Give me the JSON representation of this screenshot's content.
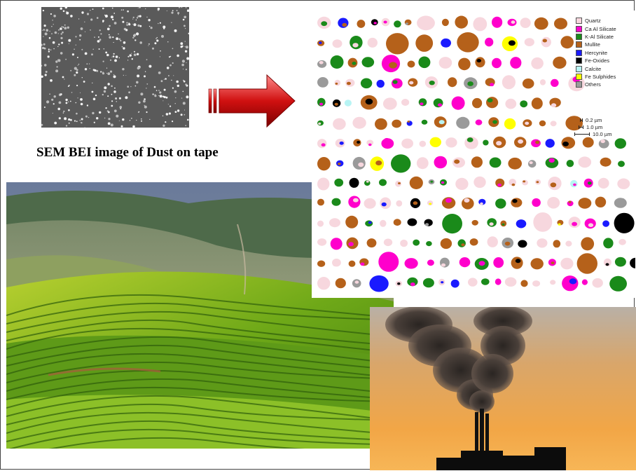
{
  "caption": "SEM BEI image of Dust on tape",
  "legend": [
    {
      "label": "Quartz",
      "color": "#f7d7de"
    },
    {
      "label": "Ca Al Silicate",
      "color": "#ff00cc"
    },
    {
      "label": "K-Al Silicate",
      "color": "#1a8a1a"
    },
    {
      "label": "Mullite",
      "color": "#b5611a"
    },
    {
      "label": "Hercynite",
      "color": "#1a1aff"
    },
    {
      "label": "Fe-Oxides",
      "color": "#000000"
    },
    {
      "label": "Calcite",
      "color": "#b8f4f4"
    },
    {
      "label": "Fe Sulphides",
      "color": "#ffff00"
    },
    {
      "label": "Others",
      "color": "#9a9a9a"
    }
  ],
  "scale": [
    "0.2 µm",
    "1.0 µm",
    "10.0 µm"
  ]
}
